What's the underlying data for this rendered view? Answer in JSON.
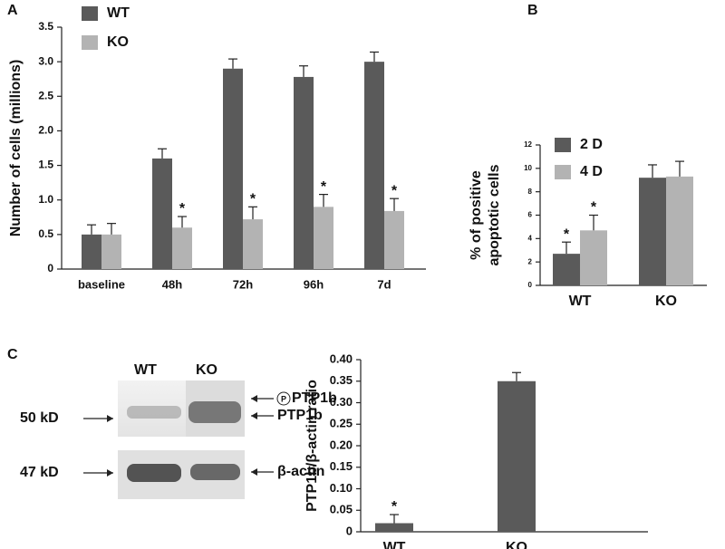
{
  "chart_data": [
    {
      "type": "bar",
      "panel": "A",
      "ylabel": [
        "Number of cells (millions)"
      ],
      "categories": [
        "baseline",
        "48h",
        "72h",
        "96h",
        "7d"
      ],
      "series": [
        {
          "name": "WT",
          "color": "#5a5a5a",
          "values": [
            0.5,
            1.6,
            2.9,
            2.78,
            3.0
          ],
          "errors": [
            0.14,
            0.14,
            0.14,
            0.16,
            0.14
          ],
          "annotations": [
            null,
            null,
            null,
            null,
            null
          ]
        },
        {
          "name": "KO",
          "color": "#b3b3b3",
          "values": [
            0.5,
            0.6,
            0.72,
            0.9,
            0.84
          ],
          "errors": [
            0.16,
            0.16,
            0.18,
            0.18,
            0.18
          ],
          "annotations": [
            null,
            "*",
            "*",
            "*",
            "*"
          ]
        }
      ],
      "ylim": [
        0,
        3.5
      ],
      "yticks": [
        0,
        0.5,
        {
          "value": 1,
          "label": "1.0"
        },
        1.5,
        {
          "value": 2,
          "label": "2.0"
        },
        2.5,
        {
          "value": 3,
          "label": "3.0"
        },
        3.5
      ],
      "legend": "upper left"
    },
    {
      "type": "bar",
      "panel": "B",
      "ylabel": [
        "% of  positive",
        "apoptotic cells"
      ],
      "categories": [
        "WT",
        "KO"
      ],
      "series": [
        {
          "name": "2 D",
          "color": "#5a5a5a",
          "values": [
            2.7,
            9.2
          ],
          "errors": [
            1.0,
            1.1
          ],
          "annotations": [
            "*",
            null
          ]
        },
        {
          "name": "4 D",
          "color": "#b3b3b3",
          "values": [
            4.7,
            9.3
          ],
          "errors": [
            1.3,
            1.3
          ],
          "annotations": [
            "*",
            null
          ]
        }
      ],
      "ylim": [
        0,
        12
      ],
      "yticks": [
        0,
        2,
        4,
        6,
        8,
        10,
        12
      ],
      "legend": "upper left"
    },
    {
      "type": "bar",
      "panel": "C",
      "ylabel": [
        "PTP1b/β-actin ratio"
      ],
      "categories": [
        "WT",
        "KO"
      ],
      "series": [
        {
          "name": "PTP1b/β-actin ratio",
          "color": "#5a5a5a",
          "values": [
            0.02,
            0.35
          ],
          "errors": [
            0.02,
            0.02
          ],
          "annotations": [
            "*",
            null
          ]
        }
      ],
      "ylim": [
        0,
        0.4
      ],
      "yticks": [
        0,
        0.05,
        {
          "value": 0.1,
          "label": "0.10"
        },
        0.15,
        {
          "value": 0.2,
          "label": "0.20"
        },
        0.25,
        {
          "value": 0.3,
          "label": "0.30"
        },
        0.35,
        {
          "value": 0.4,
          "label": "0.40"
        }
      ]
    }
  ],
  "blot": {
    "lanes": [
      "WT",
      "KO"
    ],
    "sizes": [
      "50 kD",
      "47 kD"
    ],
    "phospho_symbol": "P",
    "bands": [
      "PTP1b",
      "PTP1b",
      "β-actin"
    ]
  }
}
